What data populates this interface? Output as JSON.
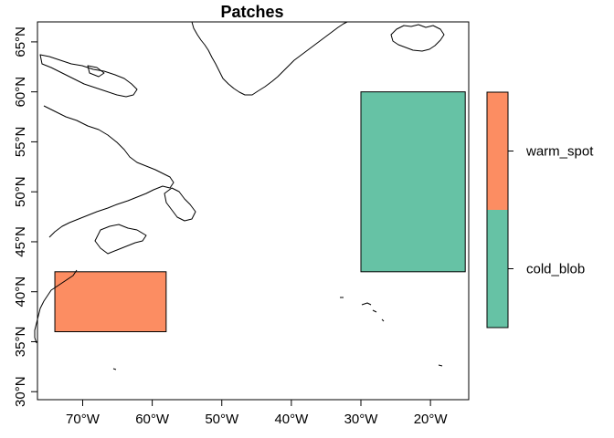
{
  "title": "Patches",
  "map": {
    "lon_range": [
      -76.5,
      -14.5
    ],
    "lat_range": [
      29.2,
      67.0
    ],
    "x_ticks": [
      {
        "value": -70,
        "label": "70°W"
      },
      {
        "value": -60,
        "label": "60°W"
      },
      {
        "value": -50,
        "label": "50°W"
      },
      {
        "value": -40,
        "label": "40°W"
      },
      {
        "value": -30,
        "label": "30°W"
      },
      {
        "value": -20,
        "label": "20°W"
      }
    ],
    "y_ticks": [
      {
        "value": 30,
        "label": "30°N"
      },
      {
        "value": 35,
        "label": "35°N"
      },
      {
        "value": 40,
        "label": "40°N"
      },
      {
        "value": 45,
        "label": "45°N"
      },
      {
        "value": 50,
        "label": "50°N"
      },
      {
        "value": 55,
        "label": "55°N"
      },
      {
        "value": 60,
        "label": "60°N"
      },
      {
        "value": 65,
        "label": "65°N"
      }
    ]
  },
  "patches": [
    {
      "name": "warm_spot",
      "lon": [
        -74,
        -58
      ],
      "lat": [
        36,
        42
      ],
      "color": "#fc8d62"
    },
    {
      "name": "cold_blob",
      "lon": [
        -30,
        -15
      ],
      "lat": [
        42,
        60
      ],
      "color": "#66c2a5"
    }
  ],
  "legend": {
    "entries": [
      {
        "label": "cold_blob",
        "color": "#66c2a5"
      },
      {
        "label": "warm_spot",
        "color": "#fc8d62"
      }
    ]
  },
  "colors": {
    "outline": "#000000",
    "background": "#ffffff"
  }
}
